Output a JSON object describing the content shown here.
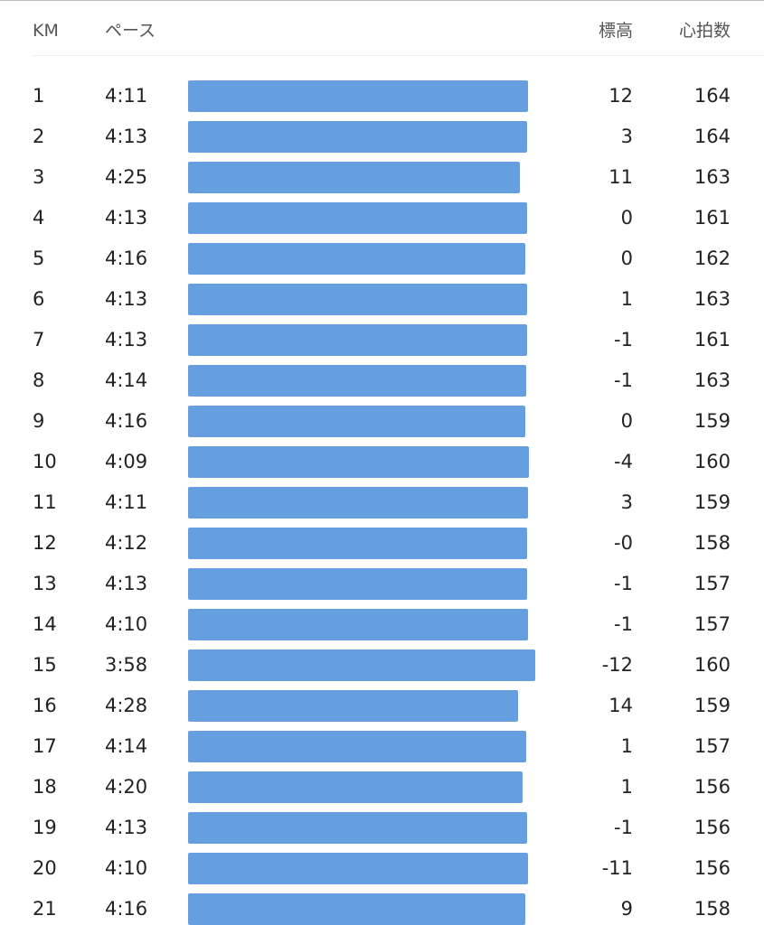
{
  "header": {
    "km": "KM",
    "pace": "ペース",
    "elevation": "標高",
    "heart_rate": "心拍数"
  },
  "rows": [
    [
      "1",
      "4:11",
      "12",
      "164"
    ],
    [
      "2",
      "4:13",
      "3",
      "164"
    ],
    [
      "3",
      "4:25",
      "11",
      "163"
    ],
    [
      "4",
      "4:13",
      "0",
      "161"
    ],
    [
      "5",
      "4:16",
      "0",
      "162"
    ],
    [
      "6",
      "4:13",
      "1",
      "163"
    ],
    [
      "7",
      "4:13",
      "-1",
      "161"
    ],
    [
      "8",
      "4:14",
      "-1",
      "163"
    ],
    [
      "9",
      "4:16",
      "0",
      "159"
    ],
    [
      "10",
      "4:09",
      "-4",
      "160"
    ],
    [
      "11",
      "4:11",
      "3",
      "159"
    ],
    [
      "12",
      "4:12",
      "-0",
      "158"
    ],
    [
      "13",
      "4:13",
      "-1",
      "157"
    ],
    [
      "14",
      "4:10",
      "-1",
      "157"
    ],
    [
      "15",
      "3:58",
      "-12",
      "160"
    ],
    [
      "16",
      "4:28",
      "14",
      "159"
    ],
    [
      "17",
      "4:14",
      "1",
      "157"
    ],
    [
      "18",
      "4:20",
      "1",
      "156"
    ],
    [
      "19",
      "4:13",
      "-1",
      "156"
    ],
    [
      "20",
      "4:10",
      "-11",
      "156"
    ],
    [
      "21",
      "4:16",
      "9",
      "158"
    ]
  ]
}
